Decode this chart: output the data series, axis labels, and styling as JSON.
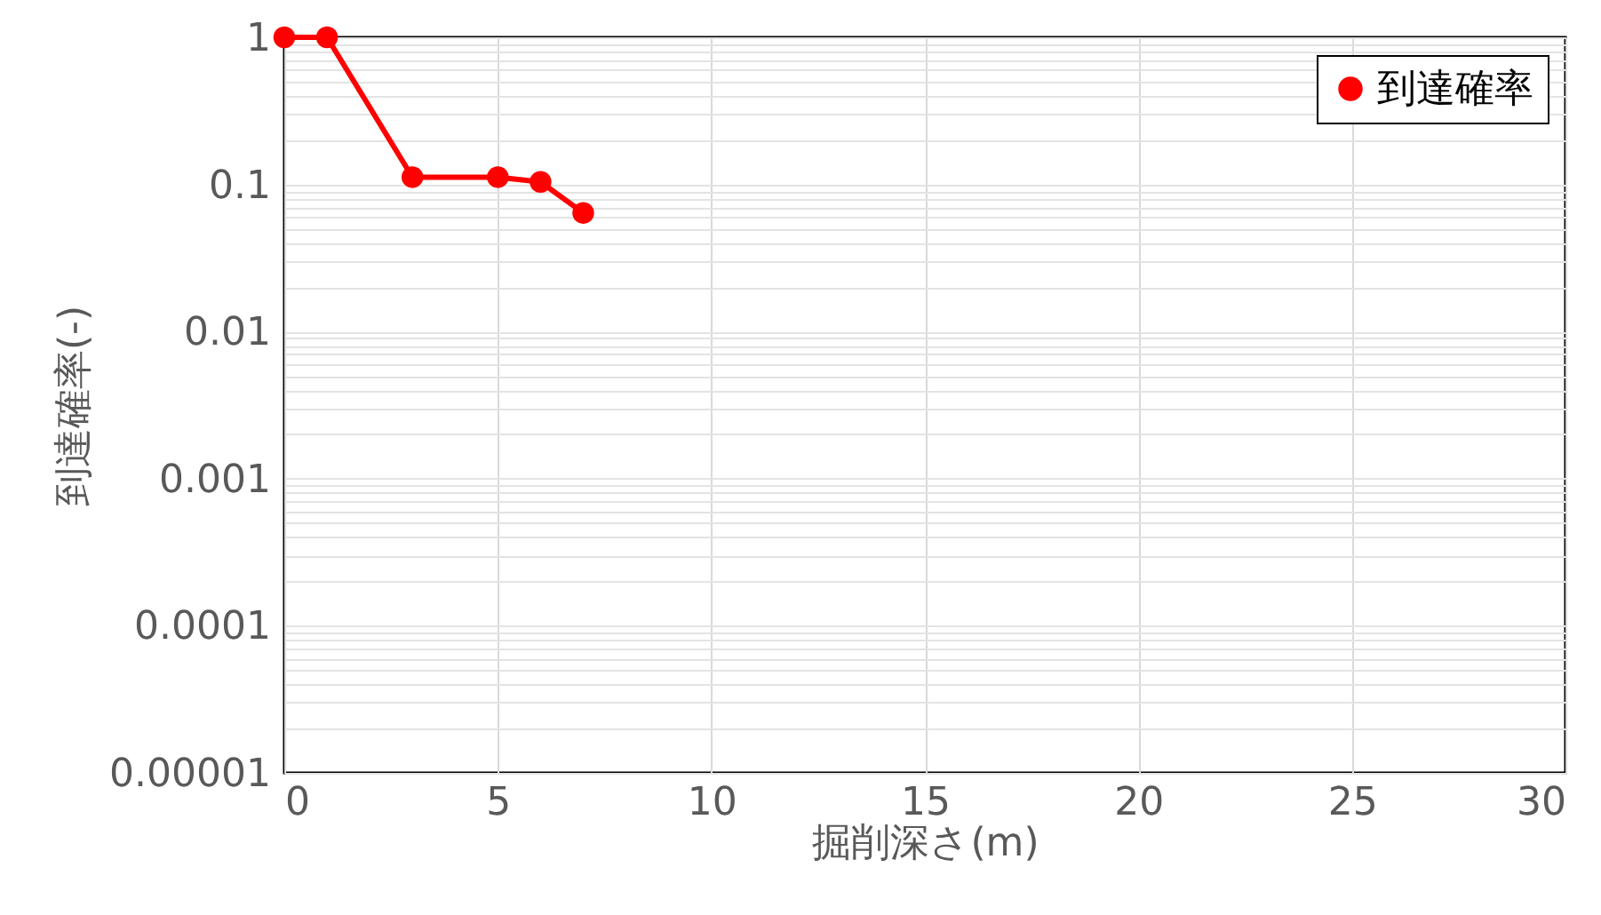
{
  "chart_data": {
    "type": "line",
    "xlabel": "掘削深さ(m)",
    "ylabel": "到達確率(-)",
    "x": [
      0,
      1,
      3,
      5,
      6,
      7
    ],
    "series": [
      {
        "name": "到達確率",
        "color": "#ff0000",
        "values": [
          1,
          1,
          0.112,
          0.112,
          0.104,
          0.064
        ]
      }
    ],
    "xlim": [
      0,
      30
    ],
    "xticks": [
      0,
      5,
      10,
      15,
      20,
      25,
      30
    ],
    "ylim": [
      1e-05,
      1
    ],
    "yticks": [
      {
        "value": 1e-05,
        "label": "0.00001"
      },
      {
        "value": 2e-05,
        "label": null
      },
      {
        "value": 3e-05,
        "label": null
      },
      {
        "value": 4e-05,
        "label": null
      },
      {
        "value": 5e-05,
        "label": null
      },
      {
        "value": 6e-05,
        "label": null
      },
      {
        "value": 7e-05,
        "label": null
      },
      {
        "value": 8e-05,
        "label": null
      },
      {
        "value": 9e-05,
        "label": null
      },
      0.0001,
      {
        "value": 0.0002,
        "label": null
      },
      {
        "value": 0.0003,
        "label": null
      },
      {
        "value": 0.0004,
        "label": null
      },
      {
        "value": 0.0005,
        "label": null
      },
      {
        "value": 0.0006,
        "label": null
      },
      {
        "value": 0.0007,
        "label": null
      },
      {
        "value": 0.0008,
        "label": null
      },
      {
        "value": 0.0009,
        "label": null
      },
      0.001,
      {
        "value": 0.002,
        "label": null
      },
      {
        "value": 0.003,
        "label": null
      },
      {
        "value": 0.004,
        "label": null
      },
      {
        "value": 0.005,
        "label": null
      },
      {
        "value": 0.006,
        "label": null
      },
      {
        "value": 0.007,
        "label": null
      },
      {
        "value": 0.008,
        "label": null
      },
      {
        "value": 0.009,
        "label": null
      },
      0.01,
      {
        "value": 0.02,
        "label": null
      },
      {
        "value": 0.03,
        "label": null
      },
      {
        "value": 0.04,
        "label": null
      },
      {
        "value": 0.05,
        "label": null
      },
      {
        "value": 0.06,
        "label": null
      },
      {
        "value": 0.07,
        "label": null
      },
      {
        "value": 0.08,
        "label": null
      },
      {
        "value": 0.09,
        "label": null
      },
      0.1,
      {
        "value": 0.2,
        "label": null
      },
      {
        "value": 0.3,
        "label": null
      },
      {
        "value": 0.4,
        "label": null
      },
      {
        "value": 0.5,
        "label": null
      },
      {
        "value": 0.6,
        "label": null
      },
      {
        "value": 0.7,
        "label": null
      },
      {
        "value": 0.8,
        "label": null
      },
      {
        "value": 0.9,
        "label": null
      },
      1
    ],
    "log": true,
    "grid": true,
    "legend": "top right",
    "marker": "circle",
    "line_style": "solid"
  }
}
